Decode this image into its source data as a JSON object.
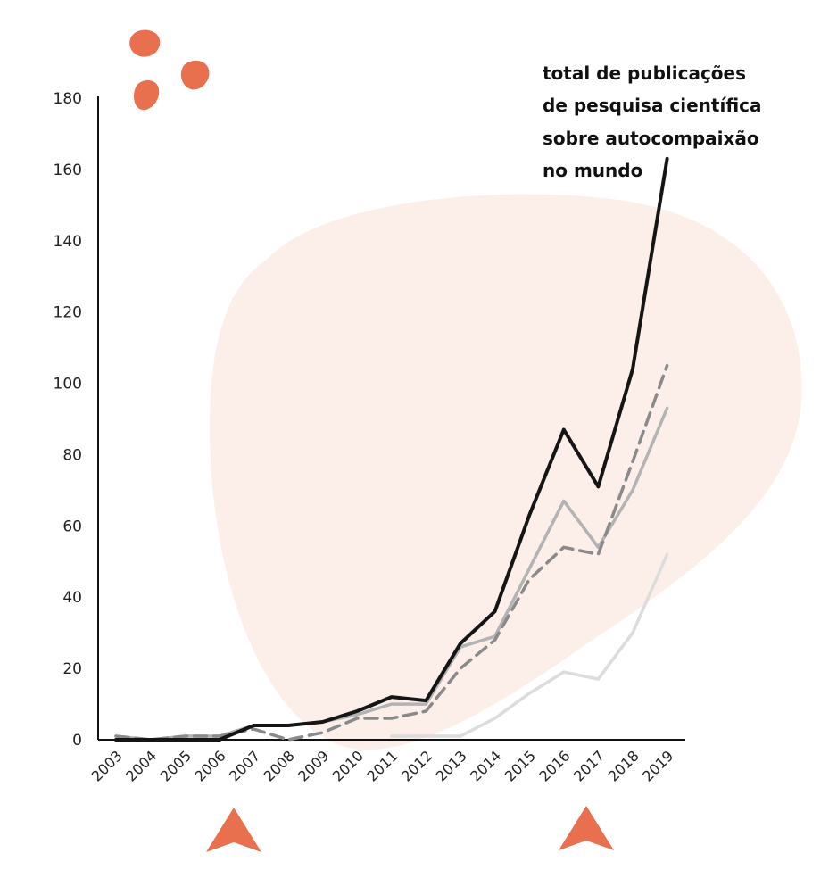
{
  "chart_data": {
    "type": "line",
    "title_lines": [
      "total de publicações",
      "de pesquisa científica",
      "sobre autocompaixão",
      "no mundo"
    ],
    "xlabel": "",
    "ylabel": "",
    "ylim": [
      0,
      180
    ],
    "yticks": [
      0,
      20,
      40,
      60,
      80,
      100,
      120,
      140,
      160,
      180
    ],
    "categories": [
      "2003",
      "2004",
      "2005",
      "2006",
      "2007",
      "2008",
      "2009",
      "2010",
      "2011",
      "2012",
      "2013",
      "2014",
      "2015",
      "2016",
      "2017",
      "2018",
      "2019"
    ],
    "series": [
      {
        "name": "series-black",
        "color": "#151515",
        "dash": "solid",
        "values": [
          0,
          0,
          0,
          0,
          4,
          4,
          5,
          8,
          12,
          11,
          27,
          36,
          63,
          87,
          71,
          104,
          163
        ]
      },
      {
        "name": "series-gray",
        "color": "#b3b3b3",
        "dash": "solid",
        "values": [
          1,
          0,
          1,
          1,
          4,
          4,
          5,
          7,
          10,
          10,
          26,
          29,
          48,
          67,
          54,
          70,
          93
        ]
      },
      {
        "name": "series-dashed",
        "color": "#8a8a8a",
        "dash": "dashed",
        "values": [
          1,
          0,
          1,
          1,
          3,
          0,
          2,
          6,
          6,
          8,
          20,
          28,
          45,
          54,
          52,
          78,
          105
        ]
      },
      {
        "name": "series-light",
        "color": "#dcdcdc",
        "dash": "solid",
        "values": [
          null,
          null,
          null,
          null,
          null,
          null,
          null,
          null,
          1,
          1,
          1,
          6,
          13,
          19,
          17,
          30,
          52
        ]
      }
    ],
    "highlight_markers": [
      "2007",
      "2017"
    ]
  },
  "colors": {
    "accent": "#e8704f",
    "blob": "#fcefea"
  }
}
